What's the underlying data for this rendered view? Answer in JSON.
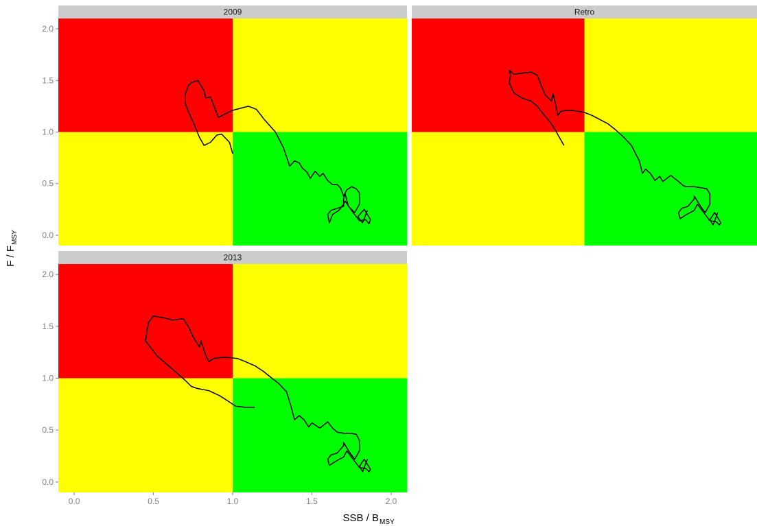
{
  "chart_data": {
    "type": "line",
    "xlabel": {
      "main": "SSB / B",
      "subscript": "MSY"
    },
    "ylabel": {
      "main": "F / F",
      "subscript": "MSY"
    },
    "xlim": [
      -0.1,
      2.1
    ],
    "ylim": [
      -0.1,
      2.1
    ],
    "x_ticks": [
      "0.0",
      "0.5",
      "1.0",
      "1.5",
      "2.0"
    ],
    "y_ticks": [
      "0.0",
      "0.5",
      "1.0",
      "1.5",
      "2.0"
    ],
    "reference_lines": {
      "x": 1.0,
      "y": 1.0
    },
    "quadrant_colors": {
      "top_left": "#ff0000",
      "top_right": "#ffff00",
      "bottom_left": "#ffff00",
      "bottom_right": "#00ff00"
    },
    "strip_color": "#cccccc",
    "line_color": "#000000",
    "panels": [
      {
        "title": "2009",
        "x": [
          1.0,
          0.98,
          0.93,
          0.9,
          0.86,
          0.82,
          0.79,
          0.75,
          0.72,
          0.7,
          0.7,
          0.72,
          0.74,
          0.78,
          0.82,
          0.83,
          0.86,
          0.89,
          0.91,
          0.92,
          0.97,
          1.0,
          1.05,
          1.1,
          1.15,
          1.2,
          1.27,
          1.32,
          1.36,
          1.39,
          1.42,
          1.44,
          1.47,
          1.49,
          1.52,
          1.55,
          1.57,
          1.6,
          1.63,
          1.66,
          1.68,
          1.7,
          1.72,
          1.75,
          1.78,
          1.8,
          1.8,
          1.77,
          1.73,
          1.71,
          1.7,
          1.7,
          1.66,
          1.62,
          1.6,
          1.61,
          1.63,
          1.67,
          1.7,
          1.71,
          1.76,
          1.8,
          1.84,
          1.86,
          1.87,
          1.83,
          1.79,
          1.82,
          1.84,
          1.85
        ],
        "y": [
          0.79,
          0.9,
          0.98,
          0.97,
          0.9,
          0.87,
          0.95,
          1.1,
          1.2,
          1.28,
          1.36,
          1.45,
          1.48,
          1.5,
          1.4,
          1.33,
          1.34,
          1.22,
          1.14,
          1.15,
          1.19,
          1.21,
          1.23,
          1.25,
          1.22,
          1.12,
          1.0,
          0.85,
          0.67,
          0.72,
          0.7,
          0.65,
          0.61,
          0.55,
          0.62,
          0.57,
          0.6,
          0.53,
          0.49,
          0.49,
          0.46,
          0.38,
          0.44,
          0.47,
          0.45,
          0.41,
          0.3,
          0.22,
          0.28,
          0.4,
          0.35,
          0.28,
          0.26,
          0.24,
          0.2,
          0.12,
          0.2,
          0.24,
          0.3,
          0.33,
          0.22,
          0.14,
          0.15,
          0.11,
          0.15,
          0.25,
          0.18,
          0.12,
          0.2,
          0.24
        ]
      },
      {
        "title": "Retro",
        "x": [
          0.87,
          0.84,
          0.81,
          0.78,
          0.74,
          0.7,
          0.66,
          0.6,
          0.55,
          0.52,
          0.53,
          0.52,
          0.55,
          0.6,
          0.66,
          0.7,
          0.72,
          0.75,
          0.79,
          0.8,
          0.82,
          0.83,
          0.85,
          0.88,
          0.92,
          0.96,
          1.0,
          1.05,
          1.1,
          1.15,
          1.2,
          1.25,
          1.3,
          1.35,
          1.37,
          1.39,
          1.42,
          1.45,
          1.48,
          1.5,
          1.55,
          1.6,
          1.63,
          1.65,
          1.7,
          1.74,
          1.78,
          1.8,
          1.8,
          1.77,
          1.74,
          1.7,
          1.7,
          1.66,
          1.62,
          1.6,
          1.61,
          1.65,
          1.7,
          1.72,
          1.76,
          1.8,
          1.84,
          1.86,
          1.87,
          1.83,
          1.8,
          1.82,
          1.84,
          1.85
        ],
        "y": [
          0.87,
          0.95,
          1.03,
          1.1,
          1.17,
          1.25,
          1.3,
          1.33,
          1.38,
          1.48,
          1.55,
          1.6,
          1.56,
          1.57,
          1.58,
          1.55,
          1.47,
          1.36,
          1.3,
          1.37,
          1.25,
          1.16,
          1.2,
          1.21,
          1.21,
          1.2,
          1.19,
          1.16,
          1.12,
          1.08,
          1.02,
          0.95,
          0.87,
          0.72,
          0.6,
          0.64,
          0.6,
          0.53,
          0.57,
          0.52,
          0.58,
          0.52,
          0.48,
          0.47,
          0.47,
          0.46,
          0.45,
          0.4,
          0.3,
          0.22,
          0.28,
          0.38,
          0.35,
          0.28,
          0.26,
          0.22,
          0.16,
          0.2,
          0.24,
          0.3,
          0.22,
          0.14,
          0.13,
          0.1,
          0.12,
          0.22,
          0.15,
          0.1,
          0.18,
          0.22
        ]
      },
      {
        "title": "2013",
        "x": [
          1.14,
          1.08,
          1.02,
          0.97,
          0.92,
          0.85,
          0.78,
          0.74,
          0.7,
          0.64,
          0.58,
          0.52,
          0.48,
          0.45,
          0.46,
          0.47,
          0.5,
          0.53,
          0.57,
          0.62,
          0.67,
          0.69,
          0.72,
          0.75,
          0.79,
          0.8,
          0.83,
          0.85,
          0.88,
          0.93,
          0.97,
          1.03,
          1.08,
          1.14,
          1.19,
          1.24,
          1.29,
          1.34,
          1.37,
          1.39,
          1.42,
          1.45,
          1.48,
          1.5,
          1.55,
          1.6,
          1.63,
          1.66,
          1.7,
          1.74,
          1.78,
          1.8,
          1.8,
          1.77,
          1.74,
          1.7,
          1.7,
          1.66,
          1.62,
          1.6,
          1.61,
          1.65,
          1.7,
          1.72,
          1.76,
          1.8,
          1.84,
          1.86,
          1.87,
          1.83,
          1.8,
          1.82,
          1.84,
          1.85
        ],
        "y": [
          0.72,
          0.72,
          0.73,
          0.78,
          0.83,
          0.88,
          0.9,
          0.92,
          0.98,
          1.06,
          1.14,
          1.22,
          1.3,
          1.36,
          1.46,
          1.54,
          1.6,
          1.59,
          1.58,
          1.56,
          1.57,
          1.57,
          1.5,
          1.4,
          1.3,
          1.36,
          1.22,
          1.16,
          1.19,
          1.2,
          1.2,
          1.19,
          1.16,
          1.12,
          1.07,
          1.01,
          0.95,
          0.87,
          0.72,
          0.6,
          0.64,
          0.6,
          0.53,
          0.57,
          0.52,
          0.58,
          0.52,
          0.48,
          0.47,
          0.47,
          0.46,
          0.4,
          0.3,
          0.22,
          0.28,
          0.38,
          0.35,
          0.28,
          0.26,
          0.22,
          0.16,
          0.2,
          0.24,
          0.3,
          0.22,
          0.14,
          0.13,
          0.1,
          0.12,
          0.22,
          0.15,
          0.1,
          0.18,
          0.22
        ]
      }
    ]
  }
}
